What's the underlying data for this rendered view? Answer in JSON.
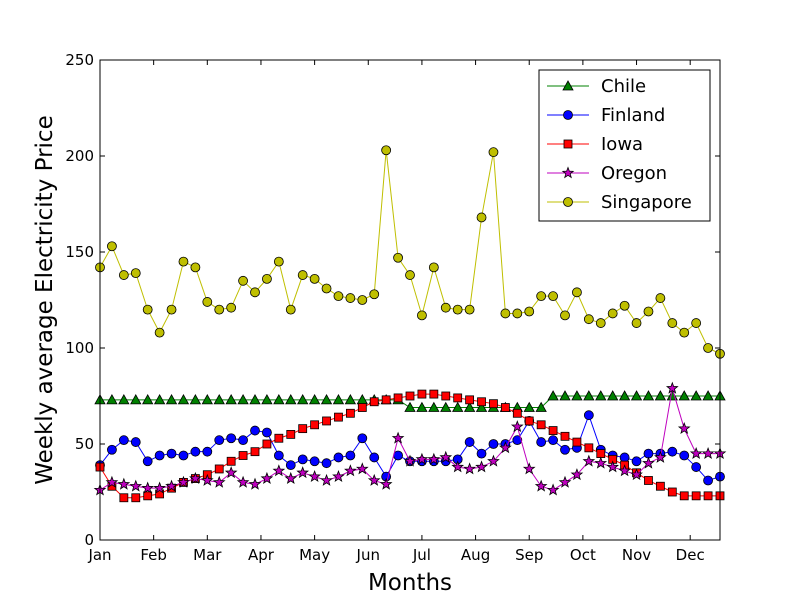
{
  "chart_data": {
    "type": "line",
    "title": "",
    "xlabel": "Months",
    "ylabel": "Weekly average Electricity Price",
    "ylim": [
      0,
      250
    ],
    "xlim": [
      1,
      53
    ],
    "y_ticks": [
      0,
      50,
      100,
      150,
      200,
      250
    ],
    "x_ticks": [
      {
        "x": 1,
        "label": "Jan"
      },
      {
        "x": 5.5,
        "label": "Feb"
      },
      {
        "x": 10,
        "label": "Mar"
      },
      {
        "x": 14.5,
        "label": "Apr"
      },
      {
        "x": 19,
        "label": "May"
      },
      {
        "x": 23.5,
        "label": "Jun"
      },
      {
        "x": 28,
        "label": "Jul"
      },
      {
        "x": 32.5,
        "label": "Aug"
      },
      {
        "x": 37,
        "label": "Sep"
      },
      {
        "x": 41.5,
        "label": "Oct"
      },
      {
        "x": 46,
        "label": "Nov"
      },
      {
        "x": 50.5,
        "label": "Dec"
      }
    ],
    "grid": false,
    "legend_position": "top-right",
    "x": [
      1,
      2,
      3,
      4,
      5,
      6,
      7,
      8,
      9,
      10,
      11,
      12,
      13,
      14,
      15,
      16,
      17,
      18,
      19,
      20,
      21,
      22,
      23,
      24,
      25,
      26,
      27,
      28,
      29,
      30,
      31,
      32,
      33,
      34,
      35,
      36,
      37,
      38,
      39,
      40,
      41,
      42,
      43,
      44,
      45,
      46,
      47,
      48,
      49,
      50,
      51,
      52,
      53
    ],
    "series": [
      {
        "name": "Chile",
        "color": "#008000",
        "marker": "triangle",
        "values": [
          73,
          73,
          73,
          73,
          73,
          73,
          73,
          73,
          73,
          73,
          73,
          73,
          73,
          73,
          73,
          73,
          73,
          73,
          73,
          73,
          73,
          73,
          73,
          73,
          73,
          73,
          69,
          69,
          69,
          69,
          69,
          69,
          69,
          69,
          69,
          69,
          69,
          69,
          75,
          75,
          75,
          75,
          75,
          75,
          75,
          75,
          75,
          75,
          75,
          75,
          75,
          75,
          75
        ]
      },
      {
        "name": "Finland",
        "color": "#0000ff",
        "marker": "circle",
        "values": [
          39,
          47,
          52,
          51,
          41,
          44,
          45,
          44,
          46,
          46,
          52,
          53,
          52,
          57,
          56,
          44,
          39,
          42,
          41,
          40,
          43,
          44,
          53,
          43,
          33,
          44,
          41,
          41,
          41,
          41,
          42,
          51,
          45,
          50,
          50,
          52,
          62,
          51,
          52,
          47,
          48,
          65,
          47,
          44,
          43,
          41,
          45,
          45,
          46,
          44,
          38,
          31,
          33
        ]
      },
      {
        "name": "Iowa",
        "color": "#ff0000",
        "marker": "square",
        "values": [
          38,
          28,
          22,
          22,
          23,
          24,
          27,
          30,
          32,
          34,
          37,
          41,
          44,
          46,
          50,
          53,
          55,
          58,
          60,
          62,
          64,
          66,
          69,
          72,
          73,
          74,
          75,
          76,
          76,
          75,
          74,
          73,
          72,
          71,
          69,
          66,
          62,
          60,
          57,
          54,
          51,
          48,
          45,
          42,
          39,
          35,
          31,
          28,
          25,
          23,
          23,
          23,
          23
        ]
      },
      {
        "name": "Oregon",
        "color": "#bf00bf",
        "marker": "star",
        "values": [
          26,
          30,
          29,
          28,
          27,
          27,
          28,
          30,
          32,
          31,
          30,
          35,
          30,
          29,
          32,
          36,
          32,
          35,
          33,
          31,
          33,
          36,
          37,
          31,
          29,
          53,
          41,
          42,
          42,
          43,
          38,
          37,
          38,
          41,
          48,
          59,
          37,
          28,
          26,
          30,
          34,
          41,
          40,
          38,
          36,
          34,
          40,
          43,
          79,
          58,
          45,
          45,
          45
        ]
      },
      {
        "name": "Singapore",
        "color": "#bfbf00",
        "marker": "circle",
        "values": [
          142,
          153,
          138,
          139,
          120,
          108,
          120,
          145,
          142,
          124,
          120,
          121,
          135,
          129,
          136,
          145,
          120,
          138,
          136,
          131,
          127,
          126,
          125,
          128,
          203,
          147,
          138,
          117,
          142,
          121,
          120,
          120,
          168,
          202,
          118,
          118,
          119,
          127,
          127,
          117,
          129,
          115,
          113,
          118,
          122,
          113,
          119,
          126,
          113,
          108,
          113,
          100,
          97
        ]
      }
    ]
  }
}
